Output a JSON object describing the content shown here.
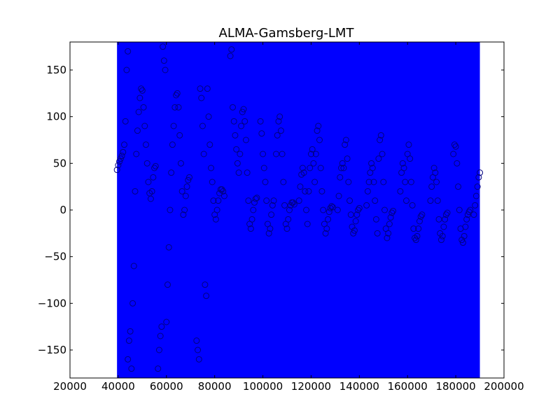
{
  "chart_data": {
    "type": "scatter",
    "title": "ALMA-Gamsberg-LMT",
    "xlabel": "",
    "ylabel": "",
    "xlim": [
      20000,
      200000
    ],
    "ylim": [
      -180,
      180
    ],
    "x_ticks": [
      {
        "value": 20000,
        "label": "20000"
      },
      {
        "value": 40000,
        "label": "40000"
      },
      {
        "value": 60000,
        "label": "60000"
      },
      {
        "value": 80000,
        "label": "80000"
      },
      {
        "value": 100000,
        "label": "100000"
      },
      {
        "value": 120000,
        "label": "120000"
      },
      {
        "value": 140000,
        "label": "140000"
      },
      {
        "value": 160000,
        "label": "160000"
      },
      {
        "value": 180000,
        "label": "180000"
      },
      {
        "value": 200000,
        "label": "200000"
      }
    ],
    "y_ticks": [
      {
        "value": 150,
        "label": "150"
      },
      {
        "value": 100,
        "label": "100"
      },
      {
        "value": 50,
        "label": "50"
      },
      {
        "value": 0,
        "label": "0"
      },
      {
        "value": -50,
        "label": "−50"
      },
      {
        "value": -100,
        "label": "−100"
      },
      {
        "value": -150,
        "label": "−150"
      }
    ],
    "grid": false,
    "series": [
      {
        "style": "filled-band",
        "color": "#0000ff",
        "x_range": [
          39500,
          190000
        ],
        "y_range": [
          -180,
          180
        ]
      },
      {
        "style": "open-circle-markers",
        "marker_edge_color": "#000080",
        "points": [
          [
            39500,
            43
          ],
          [
            40000,
            48
          ],
          [
            40500,
            52
          ],
          [
            41000,
            55
          ],
          [
            41500,
            58
          ],
          [
            42000,
            62
          ],
          [
            42500,
            70
          ],
          [
            43000,
            95
          ],
          [
            43500,
            150
          ],
          [
            44000,
            170
          ],
          [
            44000,
            -160
          ],
          [
            44500,
            -140
          ],
          [
            45000,
            -130
          ],
          [
            45500,
            -170
          ],
          [
            46000,
            -100
          ],
          [
            46500,
            -60
          ],
          [
            47000,
            20
          ],
          [
            47500,
            60
          ],
          [
            48000,
            85
          ],
          [
            48500,
            105
          ],
          [
            49000,
            120
          ],
          [
            49500,
            130
          ],
          [
            50000,
            128
          ],
          [
            50500,
            110
          ],
          [
            51000,
            90
          ],
          [
            51500,
            70
          ],
          [
            52000,
            50
          ],
          [
            52500,
            30
          ],
          [
            53000,
            18
          ],
          [
            53500,
            12
          ],
          [
            54000,
            20
          ],
          [
            54500,
            35
          ],
          [
            55000,
            45
          ],
          [
            55500,
            47
          ],
          [
            56500,
            -170
          ],
          [
            57000,
            -150
          ],
          [
            57500,
            -135
          ],
          [
            58000,
            -125
          ],
          [
            58500,
            175
          ],
          [
            59000,
            160
          ],
          [
            59500,
            150
          ],
          [
            60000,
            -120
          ],
          [
            60500,
            -80
          ],
          [
            61000,
            -40
          ],
          [
            61500,
            0
          ],
          [
            62000,
            40
          ],
          [
            62500,
            70
          ],
          [
            63000,
            90
          ],
          [
            63500,
            110
          ],
          [
            64000,
            123
          ],
          [
            64500,
            125
          ],
          [
            65000,
            110
          ],
          [
            65500,
            80
          ],
          [
            66000,
            50
          ],
          [
            66500,
            20
          ],
          [
            67000,
            -5
          ],
          [
            67500,
            0
          ],
          [
            68000,
            15
          ],
          [
            68500,
            25
          ],
          [
            69000,
            32
          ],
          [
            69500,
            35
          ],
          [
            72500,
            -140
          ],
          [
            73000,
            -150
          ],
          [
            73500,
            -160
          ],
          [
            74000,
            130
          ],
          [
            74500,
            120
          ],
          [
            75000,
            90
          ],
          [
            75500,
            60
          ],
          [
            76000,
            -80
          ],
          [
            76500,
            -92
          ],
          [
            77000,
            130
          ],
          [
            77500,
            100
          ],
          [
            78000,
            70
          ],
          [
            78500,
            45
          ],
          [
            79000,
            30
          ],
          [
            79500,
            10
          ],
          [
            80000,
            -5
          ],
          [
            80500,
            -10
          ],
          [
            81000,
            0
          ],
          [
            81500,
            10
          ],
          [
            82000,
            18
          ],
          [
            82500,
            22
          ],
          [
            83000,
            22
          ],
          [
            83500,
            20
          ],
          [
            84000,
            15
          ],
          [
            86500,
            165
          ],
          [
            87000,
            172
          ],
          [
            87500,
            110
          ],
          [
            88000,
            95
          ],
          [
            88500,
            80
          ],
          [
            89000,
            65
          ],
          [
            89500,
            50
          ],
          [
            90000,
            40
          ],
          [
            90500,
            60
          ],
          [
            91000,
            90
          ],
          [
            91500,
            105
          ],
          [
            92000,
            108
          ],
          [
            92500,
            95
          ],
          [
            93000,
            75
          ],
          [
            93500,
            40
          ],
          [
            94000,
            10
          ],
          [
            94500,
            -15
          ],
          [
            95000,
            -20
          ],
          [
            95500,
            -10
          ],
          [
            96000,
            0
          ],
          [
            96500,
            8
          ],
          [
            97000,
            12
          ],
          [
            97500,
            13
          ],
          [
            99000,
            95
          ],
          [
            99500,
            82
          ],
          [
            100000,
            60
          ],
          [
            100500,
            45
          ],
          [
            101000,
            30
          ],
          [
            101500,
            10
          ],
          [
            102000,
            -15
          ],
          [
            102500,
            -25
          ],
          [
            103000,
            -20
          ],
          [
            103500,
            -5
          ],
          [
            104000,
            5
          ],
          [
            104500,
            10
          ],
          [
            105500,
            60
          ],
          [
            106000,
            80
          ],
          [
            106500,
            95
          ],
          [
            107000,
            100
          ],
          [
            107500,
            85
          ],
          [
            108000,
            60
          ],
          [
            108500,
            30
          ],
          [
            109000,
            5
          ],
          [
            109500,
            -15
          ],
          [
            110000,
            -20
          ],
          [
            110500,
            -10
          ],
          [
            111000,
            0
          ],
          [
            111500,
            5
          ],
          [
            112000,
            8
          ],
          [
            112500,
            8
          ],
          [
            113000,
            6
          ],
          [
            115000,
            10
          ],
          [
            115500,
            25
          ],
          [
            116000,
            38
          ],
          [
            116500,
            45
          ],
          [
            117000,
            40
          ],
          [
            117500,
            20
          ],
          [
            118000,
            0
          ],
          [
            118500,
            -15
          ],
          [
            119000,
            20
          ],
          [
            119500,
            45
          ],
          [
            120000,
            60
          ],
          [
            120500,
            65
          ],
          [
            121000,
            50
          ],
          [
            121500,
            30
          ],
          [
            122000,
            60
          ],
          [
            122500,
            85
          ],
          [
            123000,
            90
          ],
          [
            123500,
            75
          ],
          [
            124000,
            45
          ],
          [
            124500,
            20
          ],
          [
            125000,
            0
          ],
          [
            125500,
            -15
          ],
          [
            126000,
            -25
          ],
          [
            126500,
            -20
          ],
          [
            127000,
            -10
          ],
          [
            127500,
            -2
          ],
          [
            128000,
            2
          ],
          [
            128500,
            4
          ],
          [
            129000,
            3
          ],
          [
            131000,
            0
          ],
          [
            131500,
            15
          ],
          [
            132000,
            35
          ],
          [
            132500,
            45
          ],
          [
            133000,
            50
          ],
          [
            133500,
            45
          ],
          [
            134000,
            70
          ],
          [
            134500,
            75
          ],
          [
            135000,
            55
          ],
          [
            135500,
            30
          ],
          [
            136000,
            10
          ],
          [
            136500,
            -5
          ],
          [
            137000,
            -18
          ],
          [
            137500,
            -25
          ],
          [
            138000,
            -22
          ],
          [
            138500,
            -12
          ],
          [
            139000,
            -5
          ],
          [
            139500,
            0
          ],
          [
            140000,
            2
          ],
          [
            143000,
            5
          ],
          [
            143500,
            20
          ],
          [
            144000,
            30
          ],
          [
            144500,
            40
          ],
          [
            145000,
            50
          ],
          [
            145500,
            45
          ],
          [
            146000,
            30
          ],
          [
            146500,
            10
          ],
          [
            147000,
            -10
          ],
          [
            147500,
            -25
          ],
          [
            148000,
            55
          ],
          [
            148500,
            75
          ],
          [
            149000,
            80
          ],
          [
            149500,
            60
          ],
          [
            150000,
            30
          ],
          [
            150500,
            0
          ],
          [
            151000,
            -20
          ],
          [
            151500,
            -30
          ],
          [
            152000,
            -25
          ],
          [
            152500,
            -15
          ],
          [
            153000,
            -8
          ],
          [
            153500,
            -3
          ],
          [
            154000,
            -1
          ],
          [
            157000,
            20
          ],
          [
            157500,
            40
          ],
          [
            158000,
            50
          ],
          [
            158500,
            45
          ],
          [
            159000,
            30
          ],
          [
            159500,
            10
          ],
          [
            160000,
            60
          ],
          [
            160500,
            70
          ],
          [
            161000,
            55
          ],
          [
            161500,
            30
          ],
          [
            162000,
            5
          ],
          [
            162500,
            -20
          ],
          [
            163000,
            -30
          ],
          [
            163500,
            -32
          ],
          [
            164000,
            -28
          ],
          [
            164500,
            -20
          ],
          [
            165000,
            -12
          ],
          [
            165500,
            -7
          ],
          [
            166000,
            -5
          ],
          [
            169500,
            10
          ],
          [
            170000,
            25
          ],
          [
            170500,
            35
          ],
          [
            171000,
            45
          ],
          [
            171500,
            40
          ],
          [
            172000,
            30
          ],
          [
            172500,
            10
          ],
          [
            173000,
            -10
          ],
          [
            173500,
            -25
          ],
          [
            174000,
            -32
          ],
          [
            174500,
            -28
          ],
          [
            175000,
            -18
          ],
          [
            175500,
            -10
          ],
          [
            176000,
            -5
          ],
          [
            176500,
            -3
          ],
          [
            179000,
            60
          ],
          [
            179500,
            70
          ],
          [
            180000,
            68
          ],
          [
            180500,
            50
          ],
          [
            181000,
            25
          ],
          [
            181500,
            0
          ],
          [
            182000,
            -20
          ],
          [
            182500,
            -32
          ],
          [
            183000,
            -35
          ],
          [
            183500,
            -28
          ],
          [
            184000,
            -18
          ],
          [
            184500,
            -10
          ],
          [
            185000,
            -5
          ],
          [
            185500,
            -2
          ],
          [
            186000,
            0
          ],
          [
            187500,
            -5
          ],
          [
            188000,
            5
          ],
          [
            188500,
            15
          ],
          [
            189000,
            25
          ],
          [
            189500,
            35
          ],
          [
            190000,
            40
          ]
        ]
      }
    ]
  }
}
